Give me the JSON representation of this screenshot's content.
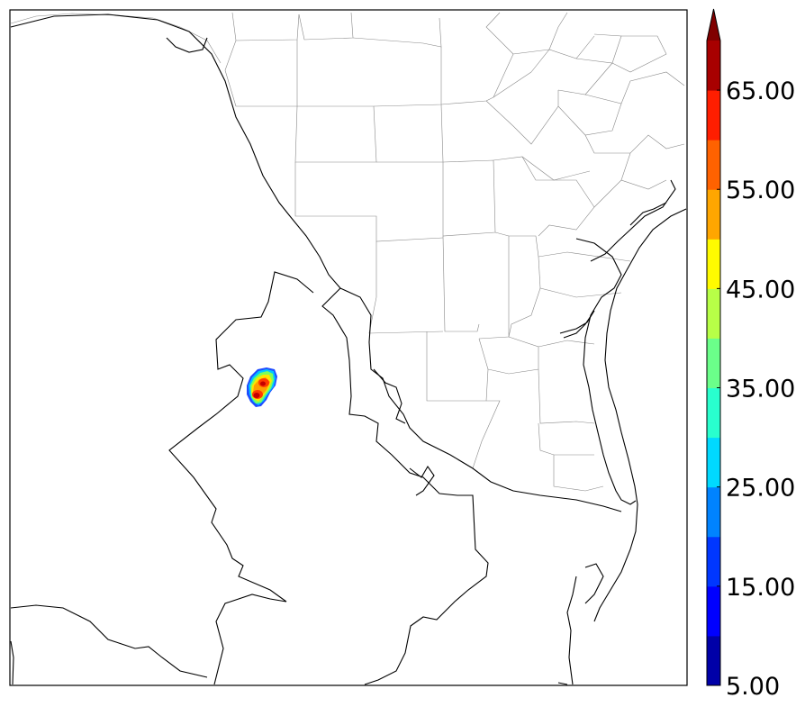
{
  "map": {
    "radar_cell": {
      "colors": [
        "#1f4cff",
        "#00c8ff",
        "#7dff5a",
        "#ffe600",
        "#ff9f00",
        "#ff3a00",
        "#c40000"
      ]
    }
  },
  "colorbar": {
    "levels": [
      5,
      10,
      15,
      20,
      25,
      30,
      35,
      40,
      45,
      50,
      55,
      60,
      65,
      70
    ],
    "colors": [
      "#0000a8",
      "#0000ff",
      "#0037ff",
      "#0083ff",
      "#00d9ff",
      "#29ffce",
      "#6bff8a",
      "#b8ff47",
      "#fffb00",
      "#ffa600",
      "#ff6200",
      "#ff1e00",
      "#a80000"
    ],
    "extend_color": "#800000",
    "tick_labels": [
      "5.00",
      "15.00",
      "25.00",
      "35.00",
      "45.00",
      "55.00",
      "65.00"
    ]
  },
  "colors": {
    "frame": "#000000",
    "county_lines": "#888888",
    "borders": "#000000"
  }
}
